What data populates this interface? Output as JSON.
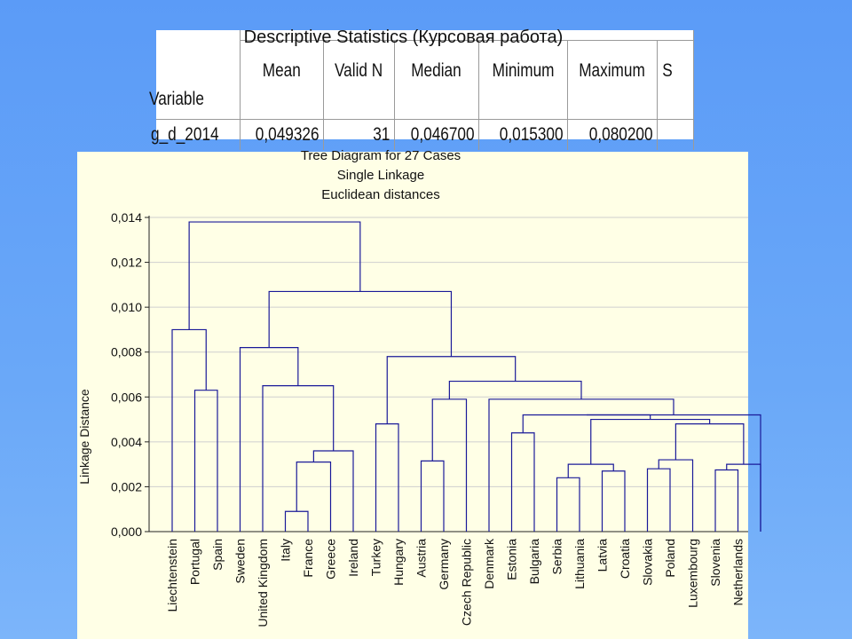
{
  "stats_table": {
    "title": "Descriptive Statistics (Курсовая работа)",
    "variable_header": "Variable",
    "columns": [
      "Mean",
      "Valid N",
      "Median",
      "Minimum",
      "Maximum",
      "S"
    ],
    "rows": [
      {
        "variable": "g_d_2014",
        "values": [
          "0,049326",
          "31",
          "0,046700",
          "0,015300",
          "0,080200",
          ""
        ]
      }
    ]
  },
  "chart_data": {
    "type": "dendrogram",
    "title_lines": [
      "Tree Diagram for 27 Cases",
      "Single Linkage",
      "Euclidean distances"
    ],
    "ylabel": "Linkage Distance",
    "ylim": [
      0,
      0.014
    ],
    "y_ticks": [
      "0,000",
      "0,002",
      "0,004",
      "0,006",
      "0,008",
      "0,010",
      "0,012",
      "0,014"
    ],
    "grid": true,
    "leaves": [
      "Liechtenstein",
      "Portugal",
      "Spain",
      "Sweden",
      "United Kingdom",
      "Italy",
      "France",
      "Greece",
      "Ireland",
      "Turkey",
      "Hungary",
      "Austria",
      "Germany",
      "Czech Republic",
      "Denmark",
      "Estonia",
      "Bulgaria",
      "Serbia",
      "Lithuania",
      "Latvia",
      "Croatia",
      "Slovakia",
      "Poland",
      "Luxembourg",
      "Slovenia",
      "Netherlands"
    ],
    "merges": [
      [
        "Italy",
        "France",
        0.0009
      ],
      [
        "Serbia",
        "Lithuania",
        0.0024
      ],
      [
        "Latvia",
        "Croatia",
        0.0027
      ],
      [
        "Slovenia",
        "Netherlands",
        0.00275
      ],
      [
        "Slovakia",
        "Poland",
        0.0028
      ],
      [
        "{Slovenia,Netherlands}",
        "(off-chart case)",
        0.003
      ],
      [
        "{Serbia,Lithuania}",
        "{Latvia,Croatia}",
        0.003
      ],
      [
        "{Italy,France}",
        "Greece",
        0.0031
      ],
      [
        "Austria",
        "Germany",
        0.00315
      ],
      [
        "{Slovakia,Poland}",
        "Luxembourg",
        0.0032
      ],
      [
        "{Italy,France,Greece}",
        "Ireland",
        0.0036
      ],
      [
        "Estonia",
        "Bulgaria",
        0.0044
      ],
      [
        "Turkey",
        "Hungary",
        0.0048
      ],
      [
        "{Slovakia..Luxembourg}",
        "{Slovenia..}",
        0.0048
      ],
      [
        "{Serbia..Croatia}",
        "{Slovakia..Slovenia..}",
        0.005
      ],
      [
        "{Estonia,Bulgaria}",
        "{Serbia..}",
        0.0052
      ],
      [
        "{Estonia..}",
        "(off-chart case)",
        0.0052
      ],
      [
        "Denmark",
        "{Estonia..}",
        0.0059
      ],
      [
        "{Austria,Germany}",
        "Czech Republic",
        0.0059
      ],
      [
        "Portugal",
        "Spain",
        0.0063
      ],
      [
        "United Kingdom",
        "{Italy..Ireland}",
        0.0065
      ],
      [
        "{Austria..Czech}",
        "{Denmark..}",
        0.0067
      ],
      [
        "{Turkey,Hungary}",
        "{Austria..}",
        0.0078
      ],
      [
        "Sweden",
        "{United Kingdom..}",
        0.0082
      ],
      [
        "Liechtenstein",
        "{Portugal,Spain}",
        0.009
      ],
      [
        "{Sweden..}",
        "{Turkey..}",
        0.0107
      ],
      [
        "{Liechtenstein..}",
        "{Sweden..}",
        0.0138
      ]
    ]
  }
}
